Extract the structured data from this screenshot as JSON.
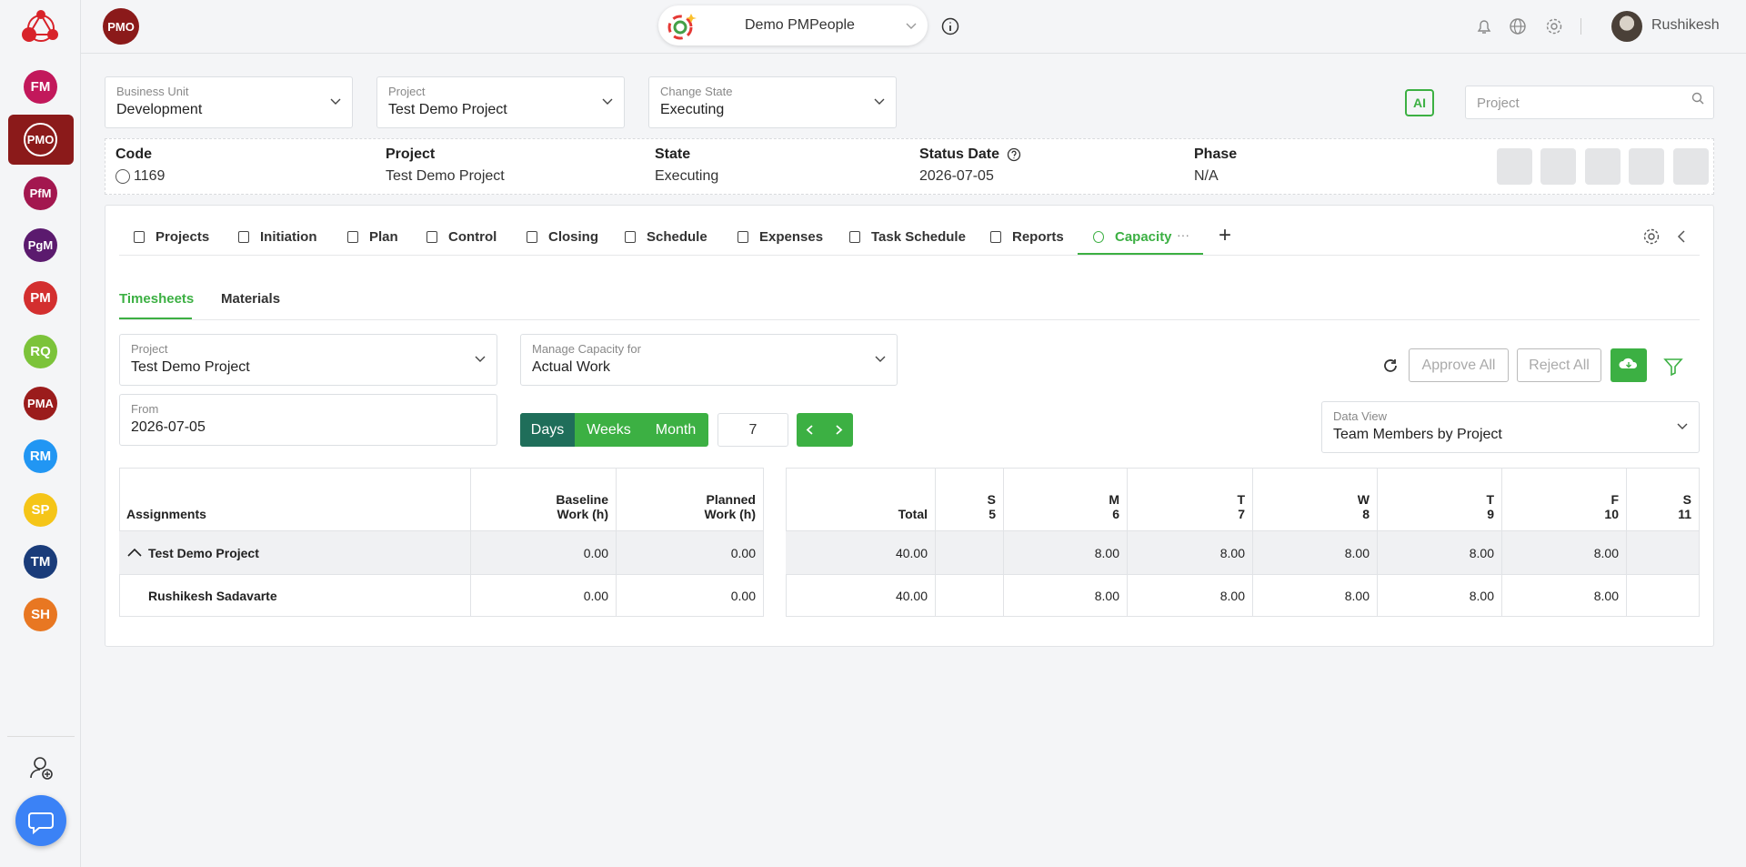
{
  "sidebar": {
    "items": [
      "FM",
      "PMO",
      "PfM",
      "PgM",
      "PM",
      "RQ",
      "PMA",
      "RM",
      "SP",
      "TM",
      "SH"
    ]
  },
  "header": {
    "badge": "PMO",
    "workspace": "Demo PMPeople",
    "user": "Rushikesh"
  },
  "filters": [
    {
      "label": "Business Unit",
      "value": "Development"
    },
    {
      "label": "Project",
      "value": "Test Demo Project"
    },
    {
      "label": "Change State",
      "value": "Executing"
    }
  ],
  "ai_label": "AI",
  "search_placeholder": "Project",
  "summary": [
    {
      "label": "Code",
      "value": "1169"
    },
    {
      "label": "Project",
      "value": "Test Demo Project"
    },
    {
      "label": "State",
      "value": "Executing"
    },
    {
      "label": "Status Date",
      "value": "2026-07-05"
    },
    {
      "label": "Phase",
      "value": "N/A"
    }
  ],
  "tabs": [
    "Projects",
    "Initiation",
    "Plan",
    "Control",
    "Closing",
    "Schedule",
    "Expenses",
    "Task Schedule",
    "Reports",
    "Capacity"
  ],
  "subtabs": [
    "Timesheets",
    "Materials"
  ],
  "form": {
    "project": {
      "label": "Project",
      "value": "Test Demo Project"
    },
    "manage": {
      "label": "Manage Capacity for",
      "value": "Actual Work"
    },
    "from": {
      "label": "From",
      "value": "2026-07-05"
    },
    "periods": [
      "Days",
      "Weeks",
      "Month"
    ],
    "count": "7",
    "data_view": {
      "label": "Data View",
      "value": "Team Members by Project"
    }
  },
  "actions": [
    "Approve All",
    "Reject All"
  ],
  "table": {
    "left_headers": [
      "Assignments",
      "Baseline\nWork (h)",
      "Planned\nWork (h)"
    ],
    "right_headers": [
      "Total",
      "S\n5",
      "M\n6",
      "T\n7",
      "W\n8",
      "T\n9",
      "F\n10",
      "S\n11"
    ],
    "rows": [
      {
        "name": "Test Demo Project",
        "baseline": "0.00",
        "planned": "0.00",
        "total": "40.00",
        "days": [
          null,
          "8.00",
          "8.00",
          "8.00",
          "8.00",
          "8.00",
          null
        ]
      },
      {
        "name": "Rushikesh Sadavarte",
        "baseline": "0.00",
        "planned": "0.00",
        "total": "40.00",
        "days": [
          null,
          "8.00",
          "8.00",
          "8.00",
          "8.00",
          "8.00",
          null
        ]
      }
    ]
  }
}
